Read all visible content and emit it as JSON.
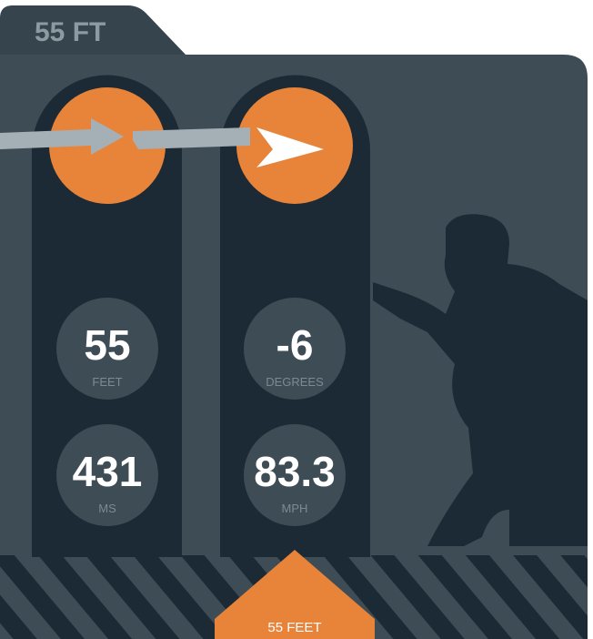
{
  "tab": {
    "label": "55 FT"
  },
  "stats": [
    {
      "value": "55",
      "unit": "FEET"
    },
    {
      "value": "-6",
      "unit": "DEGREES"
    },
    {
      "value": "431",
      "unit": "MS"
    },
    {
      "value": "83.3",
      "unit": "MPH"
    }
  ],
  "marker": {
    "label": "55 FEET"
  }
}
